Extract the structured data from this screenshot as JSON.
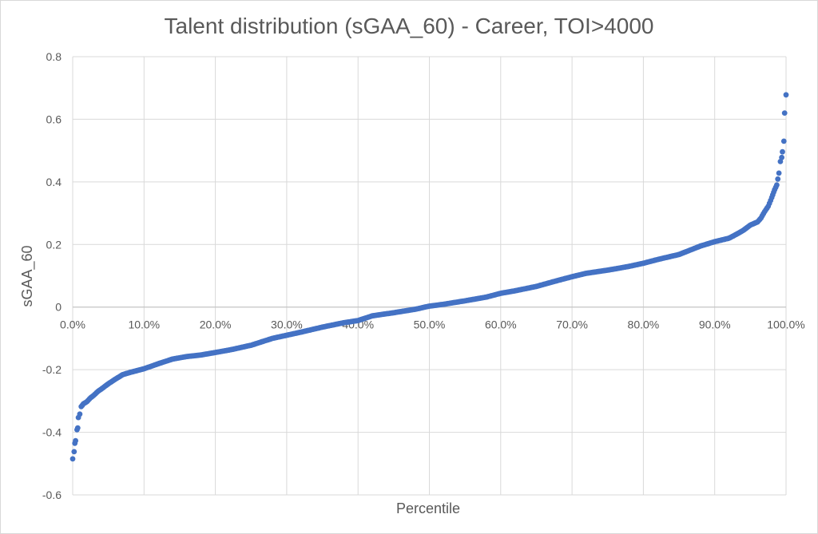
{
  "chart_data": {
    "type": "scatter",
    "title": "Talent distribution (sGAA_60) - Career, TOI>4000",
    "xlabel": "Percentile",
    "ylabel": "sGAA_60",
    "xlim": [
      0,
      1
    ],
    "ylim": [
      -0.6,
      0.8
    ],
    "x_ticks": [
      0,
      0.1,
      0.2,
      0.3,
      0.4,
      0.5,
      0.6,
      0.7,
      0.8,
      0.9,
      1.0
    ],
    "x_tick_labels": [
      "0.0%",
      "10.0%",
      "20.0%",
      "30.0%",
      "40.0%",
      "50.0%",
      "60.0%",
      "70.0%",
      "80.0%",
      "90.0%",
      "100.0%"
    ],
    "y_ticks": [
      -0.6,
      -0.4,
      -0.2,
      0,
      0.2,
      0.4,
      0.6,
      0.8
    ],
    "y_tick_labels": [
      "-0.6",
      "-0.4",
      "-0.2",
      "0",
      "0.2",
      "0.4",
      "0.6",
      "0.8"
    ],
    "grid": "vertical and horizontal major gridlines",
    "legend": "none",
    "marker_color": "#4472C4",
    "series": [
      {
        "points": [
          [
            0.0,
            -0.485
          ],
          [
            0.002,
            -0.462
          ],
          [
            0.003,
            -0.435
          ],
          [
            0.004,
            -0.427
          ],
          [
            0.006,
            -0.392
          ],
          [
            0.007,
            -0.386
          ],
          [
            0.008,
            -0.353
          ],
          [
            0.01,
            -0.342
          ],
          [
            0.012,
            -0.318
          ],
          [
            0.015,
            -0.309
          ],
          [
            0.02,
            -0.302
          ],
          [
            0.025,
            -0.29
          ],
          [
            0.03,
            -0.281
          ],
          [
            0.035,
            -0.27
          ],
          [
            0.04,
            -0.262
          ],
          [
            0.05,
            -0.245
          ],
          [
            0.06,
            -0.23
          ],
          [
            0.07,
            -0.216
          ],
          [
            0.08,
            -0.209
          ],
          [
            0.09,
            -0.203
          ],
          [
            0.1,
            -0.197
          ],
          [
            0.12,
            -0.181
          ],
          [
            0.14,
            -0.166
          ],
          [
            0.16,
            -0.158
          ],
          [
            0.18,
            -0.153
          ],
          [
            0.2,
            -0.145
          ],
          [
            0.22,
            -0.137
          ],
          [
            0.25,
            -0.122
          ],
          [
            0.28,
            -0.1
          ],
          [
            0.3,
            -0.09
          ],
          [
            0.32,
            -0.08
          ],
          [
            0.35,
            -0.064
          ],
          [
            0.38,
            -0.05
          ],
          [
            0.4,
            -0.043
          ],
          [
            0.42,
            -0.028
          ],
          [
            0.45,
            -0.018
          ],
          [
            0.48,
            -0.007
          ],
          [
            0.5,
            0.003
          ],
          [
            0.52,
            0.009
          ],
          [
            0.55,
            0.02
          ],
          [
            0.58,
            0.032
          ],
          [
            0.6,
            0.044
          ],
          [
            0.62,
            0.052
          ],
          [
            0.65,
            0.066
          ],
          [
            0.68,
            0.085
          ],
          [
            0.7,
            0.097
          ],
          [
            0.72,
            0.108
          ],
          [
            0.75,
            0.118
          ],
          [
            0.78,
            0.13
          ],
          [
            0.8,
            0.14
          ],
          [
            0.82,
            0.152
          ],
          [
            0.85,
            0.168
          ],
          [
            0.88,
            0.195
          ],
          [
            0.9,
            0.209
          ],
          [
            0.92,
            0.22
          ],
          [
            0.93,
            0.232
          ],
          [
            0.94,
            0.245
          ],
          [
            0.95,
            0.262
          ],
          [
            0.96,
            0.272
          ],
          [
            0.965,
            0.285
          ],
          [
            0.97,
            0.305
          ],
          [
            0.975,
            0.322
          ],
          [
            0.98,
            0.35
          ],
          [
            0.984,
            0.375
          ],
          [
            0.987,
            0.39
          ],
          [
            0.99,
            0.428
          ],
          [
            0.992,
            0.465
          ],
          [
            0.994,
            0.478
          ],
          [
            0.995,
            0.496
          ],
          [
            0.997,
            0.53
          ],
          [
            0.998,
            0.62
          ],
          [
            1.0,
            0.678
          ]
        ]
      }
    ]
  }
}
